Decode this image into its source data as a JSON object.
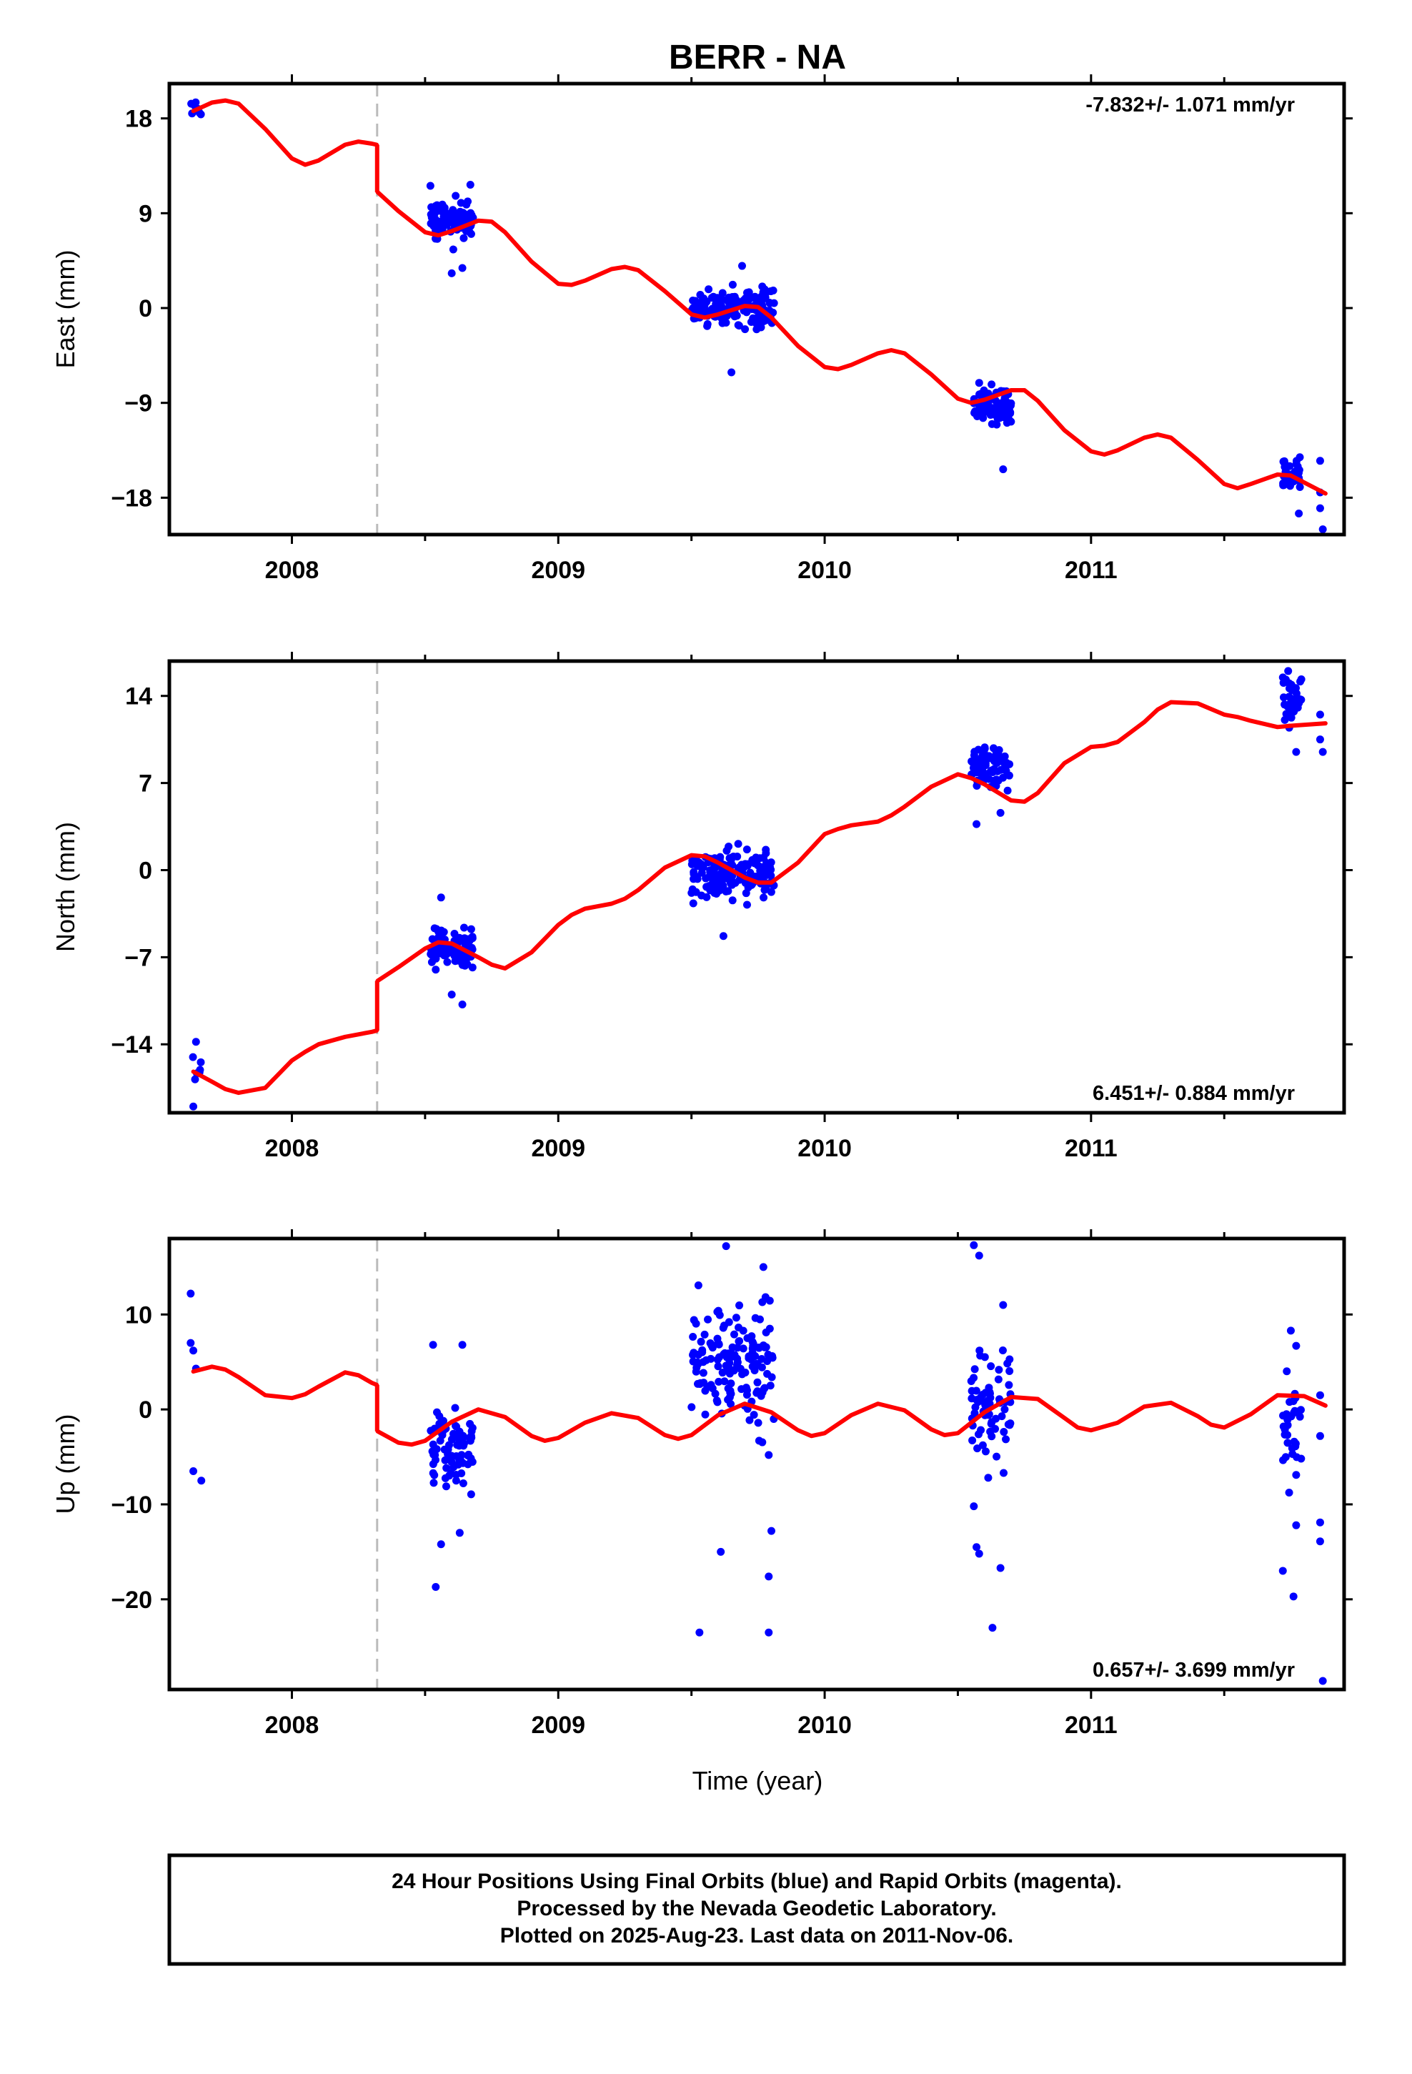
{
  "title": "BERR - NA",
  "xlabel": "Time (year)",
  "caption": [
    "24 Hour Positions Using Final Orbits (blue) and Rapid Orbits (magenta).",
    "Processed by the Nevada Geodetic Laboratory.",
    "Plotted on 2025-Aug-23. Last data on 2011-Nov-06."
  ],
  "colors": {
    "data": "#0000ff",
    "model": "#ff0000",
    "step_line": "#bbbbbb",
    "frame": "#000000"
  },
  "chart_data": [
    {
      "type": "scatter",
      "ylabel": "East (mm)",
      "rate_text": "-7.832+/- 1.071 mm/yr",
      "rate_position": "top-right",
      "xlim": [
        2007.54,
        2011.95
      ],
      "ylim": [
        -21.5,
        21.3
      ],
      "x_ticks": [
        2008,
        2009,
        2010,
        2011
      ],
      "y_ticks": [
        18,
        9,
        0,
        -9,
        -18
      ],
      "y_tick_labels": [
        "18",
        "9",
        "0",
        "−9",
        "−18"
      ],
      "step_epoch": 2008.32,
      "model": {
        "segments": [
          {
            "x": [
              2007.63,
              2007.7,
              2007.75,
              2007.8,
              2007.9,
              2008.0,
              2008.05,
              2008.1,
              2008.2,
              2008.25,
              2008.3,
              2008.318
            ],
            "y": [
              18.7,
              19.5,
              19.7,
              19.4,
              17.0,
              14.2,
              13.6,
              14.0,
              15.5,
              15.8,
              15.6,
              15.5
            ]
          },
          {
            "x": [
              2008.322,
              2008.4,
              2008.5,
              2008.55,
              2008.6,
              2008.7,
              2008.75,
              2008.8,
              2008.9,
              2009.0,
              2009.05,
              2009.1,
              2009.2,
              2009.25,
              2009.3,
              2009.4,
              2009.5,
              2009.55,
              2009.6,
              2009.7,
              2009.75,
              2009.8,
              2009.9,
              2010.0,
              2010.05,
              2010.1,
              2010.2,
              2010.25,
              2010.3,
              2010.4,
              2010.5,
              2010.55,
              2010.6,
              2010.7,
              2010.75,
              2010.8,
              2010.9,
              2011.0,
              2011.05,
              2011.1,
              2011.2,
              2011.25,
              2011.3,
              2011.4,
              2011.5,
              2011.55,
              2011.6,
              2011.7,
              2011.75,
              2011.88
            ],
            "y": [
              11.0,
              9.2,
              7.2,
              6.9,
              7.3,
              8.3,
              8.2,
              7.2,
              4.4,
              2.3,
              2.2,
              2.6,
              3.7,
              3.9,
              3.6,
              1.6,
              -0.6,
              -0.9,
              -0.6,
              0.2,
              0.1,
              -0.9,
              -3.6,
              -5.6,
              -5.8,
              -5.4,
              -4.3,
              -4.0,
              -4.3,
              -6.3,
              -8.6,
              -9.0,
              -8.7,
              -7.8,
              -7.8,
              -8.8,
              -11.6,
              -13.6,
              -13.9,
              -13.5,
              -12.3,
              -12.0,
              -12.3,
              -14.4,
              -16.7,
              -17.1,
              -16.7,
              -15.8,
              -15.9,
              -17.6
            ]
          }
        ]
      },
      "clusters": [
        {
          "xr": [
            2007.61,
            2007.66
          ],
          "center": 19.0,
          "spread": 1.0,
          "n": 7
        },
        {
          "xr": [
            2008.52,
            2008.68
          ],
          "center": 8.3,
          "spread": 1.6,
          "n": 90
        },
        {
          "xr": [
            2009.5,
            2009.81
          ],
          "center": 0.0,
          "spread": 1.4,
          "n": 160
        },
        {
          "xr": [
            2010.55,
            2010.7
          ],
          "center": -9.4,
          "spread": 1.3,
          "n": 75
        },
        {
          "xr": [
            2011.72,
            2011.79
          ],
          "center": -15.5,
          "spread": 1.3,
          "n": 35
        }
      ],
      "outliers": [
        {
          "x": 2008.52,
          "y": 11.6
        },
        {
          "x": 2008.6,
          "y": 3.3
        },
        {
          "x": 2008.64,
          "y": 3.8
        },
        {
          "x": 2008.67,
          "y": 11.7
        },
        {
          "x": 2009.65,
          "y": -6.1
        },
        {
          "x": 2009.69,
          "y": 4.0
        },
        {
          "x": 2010.58,
          "y": -7.1
        },
        {
          "x": 2010.67,
          "y": -15.3
        },
        {
          "x": 2011.78,
          "y": -19.5
        },
        {
          "x": 2011.86,
          "y": -14.5
        },
        {
          "x": 2011.86,
          "y": -17.5
        },
        {
          "x": 2011.86,
          "y": -19.0
        },
        {
          "x": 2011.87,
          "y": -21.0
        }
      ]
    },
    {
      "type": "scatter",
      "ylabel": "North (mm)",
      "rate_text": "6.451+/- 0.884 mm/yr",
      "rate_position": "bottom-right",
      "xlim": [
        2007.54,
        2011.95
      ],
      "ylim": [
        -19.5,
        16.8
      ],
      "x_ticks": [
        2008,
        2009,
        2010,
        2011
      ],
      "y_ticks": [
        14,
        7,
        0,
        -7,
        -14
      ],
      "y_tick_labels": [
        "14",
        "7",
        "0",
        "−7",
        "−14"
      ],
      "step_epoch": 2008.32,
      "model": {
        "segments": [
          {
            "x": [
              2007.63,
              2007.7,
              2007.75,
              2007.8,
              2007.9,
              2008.0,
              2008.05,
              2008.1,
              2008.2,
              2008.25,
              2008.3,
              2008.318
            ],
            "y": [
              -16.2,
              -17.0,
              -17.6,
              -17.9,
              -17.5,
              -15.3,
              -14.6,
              -14.0,
              -13.4,
              -13.2,
              -13.0,
              -12.9
            ]
          },
          {
            "x": [
              2008.322,
              2008.4,
              2008.5,
              2008.55,
              2008.6,
              2008.7,
              2008.75,
              2008.8,
              2008.9,
              2009.0,
              2009.05,
              2009.1,
              2009.2,
              2009.25,
              2009.3,
              2009.4,
              2009.5,
              2009.55,
              2009.6,
              2009.7,
              2009.75,
              2009.8,
              2009.9,
              2010.0,
              2010.05,
              2010.1,
              2010.2,
              2010.25,
              2010.3,
              2010.4,
              2010.5,
              2010.55,
              2010.6,
              2010.7,
              2010.75,
              2010.8,
              2010.9,
              2011.0,
              2011.05,
              2011.1,
              2011.2,
              2011.25,
              2011.3,
              2011.4,
              2011.5,
              2011.55,
              2011.6,
              2011.7,
              2011.75,
              2011.88
            ],
            "y": [
              -8.9,
              -7.8,
              -6.3,
              -5.8,
              -5.9,
              -7.0,
              -7.6,
              -7.9,
              -6.6,
              -4.4,
              -3.6,
              -3.1,
              -2.7,
              -2.3,
              -1.6,
              0.2,
              1.2,
              1.1,
              0.6,
              -0.6,
              -1.0,
              -1.0,
              0.6,
              2.9,
              3.3,
              3.6,
              3.9,
              4.4,
              5.1,
              6.7,
              7.7,
              7.4,
              6.9,
              5.6,
              5.5,
              6.2,
              8.6,
              9.9,
              10.0,
              10.3,
              11.9,
              12.9,
              13.5,
              13.4,
              12.5,
              12.3,
              12.0,
              11.5,
              11.6,
              11.8
            ]
          }
        ]
      },
      "clusters": [
        {
          "xr": [
            2007.61,
            2007.66
          ],
          "center": -16.0,
          "spread": 1.0,
          "n": 6
        },
        {
          "xr": [
            2008.52,
            2008.68
          ],
          "center": -6.2,
          "spread": 1.3,
          "n": 90
        },
        {
          "xr": [
            2009.5,
            2009.81
          ],
          "center": -0.4,
          "spread": 1.5,
          "n": 160
        },
        {
          "xr": [
            2010.55,
            2010.7
          ],
          "center": 8.4,
          "spread": 1.2,
          "n": 75
        },
        {
          "xr": [
            2011.72,
            2011.79
          ],
          "center": 13.6,
          "spread": 1.4,
          "n": 35
        }
      ],
      "outliers": [
        {
          "x": 2007.63,
          "y": -19.0
        },
        {
          "x": 2007.64,
          "y": -13.8
        },
        {
          "x": 2008.56,
          "y": -2.2
        },
        {
          "x": 2008.6,
          "y": -10.0
        },
        {
          "x": 2008.64,
          "y": -10.8
        },
        {
          "x": 2009.62,
          "y": -5.3
        },
        {
          "x": 2010.57,
          "y": 3.7
        },
        {
          "x": 2010.66,
          "y": 4.6
        },
        {
          "x": 2011.74,
          "y": 16.0
        },
        {
          "x": 2011.77,
          "y": 9.5
        },
        {
          "x": 2011.86,
          "y": 12.5
        },
        {
          "x": 2011.86,
          "y": 10.5
        },
        {
          "x": 2011.87,
          "y": 9.5
        }
      ]
    },
    {
      "type": "scatter",
      "ylabel": "Up (mm)",
      "rate_text": "0.657+/- 3.699 mm/yr",
      "rate_position": "bottom-right",
      "xlim": [
        2007.54,
        2011.95
      ],
      "ylim": [
        -29.5,
        18.0
      ],
      "x_ticks": [
        2008,
        2009,
        2010,
        2011
      ],
      "y_ticks": [
        10,
        0,
        -10,
        -20
      ],
      "y_tick_labels": [
        "10",
        "0",
        "−10",
        "−20"
      ],
      "step_epoch": 2008.32,
      "model": {
        "segments": [
          {
            "x": [
              2007.63,
              2007.7,
              2007.75,
              2007.8,
              2007.9,
              2008.0,
              2008.05,
              2008.1,
              2008.2,
              2008.25,
              2008.3,
              2008.318
            ],
            "y": [
              4.0,
              4.5,
              4.2,
              3.4,
              1.5,
              1.2,
              1.6,
              2.4,
              3.9,
              3.6,
              2.8,
              2.6
            ]
          },
          {
            "x": [
              2008.322,
              2008.4,
              2008.45,
              2008.5,
              2008.6,
              2008.7,
              2008.8,
              2008.9,
              2008.95,
              2009.0,
              2009.1,
              2009.2,
              2009.3,
              2009.4,
              2009.45,
              2009.5,
              2009.6,
              2009.7,
              2009.8,
              2009.9,
              2009.95,
              2010.0,
              2010.1,
              2010.2,
              2010.3,
              2010.4,
              2010.45,
              2010.5,
              2010.6,
              2010.7,
              2010.8,
              2010.9,
              2010.95,
              2011.0,
              2011.1,
              2011.2,
              2011.3,
              2011.4,
              2011.45,
              2011.5,
              2011.6,
              2011.7,
              2011.8,
              2011.88
            ],
            "y": [
              -2.3,
              -3.5,
              -3.7,
              -3.3,
              -1.3,
              0.0,
              -0.8,
              -2.8,
              -3.3,
              -3.0,
              -1.4,
              -0.4,
              -0.9,
              -2.7,
              -3.1,
              -2.7,
              -0.6,
              0.6,
              -0.3,
              -2.2,
              -2.8,
              -2.5,
              -0.6,
              0.6,
              -0.1,
              -2.1,
              -2.7,
              -2.5,
              -0.3,
              1.3,
              1.1,
              -0.9,
              -1.9,
              -2.2,
              -1.4,
              0.3,
              0.7,
              -0.7,
              -1.6,
              -1.9,
              -0.5,
              1.5,
              1.4,
              0.4
            ]
          }
        ]
      },
      "clusters": [
        {
          "xr": [
            2008.52,
            2008.68
          ],
          "center": -4.0,
          "spread": 3.6,
          "n": 75
        },
        {
          "xr": [
            2009.5,
            2009.81
          ],
          "center": 5.0,
          "spread": 4.8,
          "n": 150
        },
        {
          "xr": [
            2010.55,
            2010.7
          ],
          "center": 0.0,
          "spread": 5.0,
          "n": 70
        },
        {
          "xr": [
            2011.72,
            2011.79
          ],
          "center": -2.0,
          "spread": 4.2,
          "n": 30
        }
      ],
      "outliers": [
        {
          "x": 2007.62,
          "y": 12.2
        },
        {
          "x": 2007.62,
          "y": 7.0
        },
        {
          "x": 2007.63,
          "y": 6.2
        },
        {
          "x": 2007.64,
          "y": 4.3
        },
        {
          "x": 2007.63,
          "y": -6.5
        },
        {
          "x": 2007.66,
          "y": -7.5
        },
        {
          "x": 2008.54,
          "y": -18.7
        },
        {
          "x": 2008.56,
          "y": -14.2
        },
        {
          "x": 2008.63,
          "y": -13.0
        },
        {
          "x": 2008.64,
          "y": 6.8
        },
        {
          "x": 2008.53,
          "y": 6.8
        },
        {
          "x": 2009.53,
          "y": -23.5
        },
        {
          "x": 2009.61,
          "y": -15.0
        },
        {
          "x": 2009.63,
          "y": 17.2
        },
        {
          "x": 2009.79,
          "y": -23.5
        },
        {
          "x": 2009.79,
          "y": -17.6
        },
        {
          "x": 2009.8,
          "y": -12.8
        },
        {
          "x": 2009.77,
          "y": 15.0
        },
        {
          "x": 2009.79,
          "y": -4.8
        },
        {
          "x": 2010.56,
          "y": 17.3
        },
        {
          "x": 2010.58,
          "y": 16.2
        },
        {
          "x": 2010.57,
          "y": -14.5
        },
        {
          "x": 2010.58,
          "y": -15.2
        },
        {
          "x": 2010.63,
          "y": -23.0
        },
        {
          "x": 2010.66,
          "y": -16.7
        },
        {
          "x": 2010.67,
          "y": 11.0
        },
        {
          "x": 2010.56,
          "y": -10.2
        },
        {
          "x": 2011.72,
          "y": -17.0
        },
        {
          "x": 2011.76,
          "y": -19.7
        },
        {
          "x": 2011.77,
          "y": -12.2
        },
        {
          "x": 2011.75,
          "y": 8.3
        },
        {
          "x": 2011.77,
          "y": 6.7
        },
        {
          "x": 2011.77,
          "y": -6.9
        },
        {
          "x": 2011.86,
          "y": 1.5
        },
        {
          "x": 2011.86,
          "y": -2.8
        },
        {
          "x": 2011.86,
          "y": -11.9
        },
        {
          "x": 2011.86,
          "y": -13.9
        },
        {
          "x": 2011.87,
          "y": -28.6
        }
      ]
    }
  ]
}
